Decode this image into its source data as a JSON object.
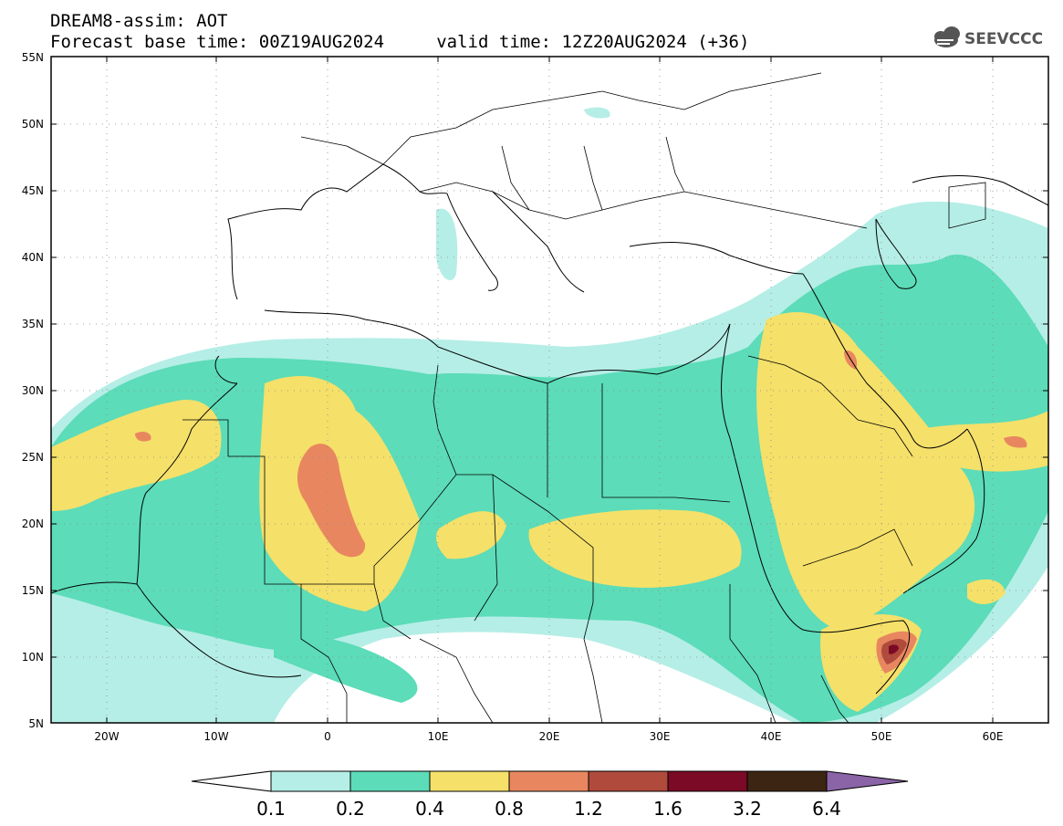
{
  "header": {
    "title_line1": "DREAM8-assim: AOT",
    "title_line2": "Forecast base time: 00Z19AUG2024     valid time: 12Z20AUG2024 (+36)",
    "logo_text": "SEEVCCC"
  },
  "map": {
    "lat_labels": [
      "55N",
      "50N",
      "45N",
      "40N",
      "35N",
      "30N",
      "25N",
      "20N",
      "15N",
      "10N",
      "5N"
    ],
    "lon_labels": [
      "20W",
      "10W",
      "0",
      "10E",
      "20E",
      "30E",
      "40E",
      "50E",
      "60E"
    ]
  },
  "colorbar": {
    "levels": [
      "0.1",
      "0.2",
      "0.4",
      "0.8",
      "1.2",
      "1.6",
      "3.2",
      "6.4"
    ],
    "colors": [
      "#ffffff",
      "#b5eee6",
      "#5cdcb8",
      "#f5e06a",
      "#e8875f",
      "#b04a3c",
      "#7a0a25",
      "#3d2513",
      "#8a64a6"
    ]
  }
}
